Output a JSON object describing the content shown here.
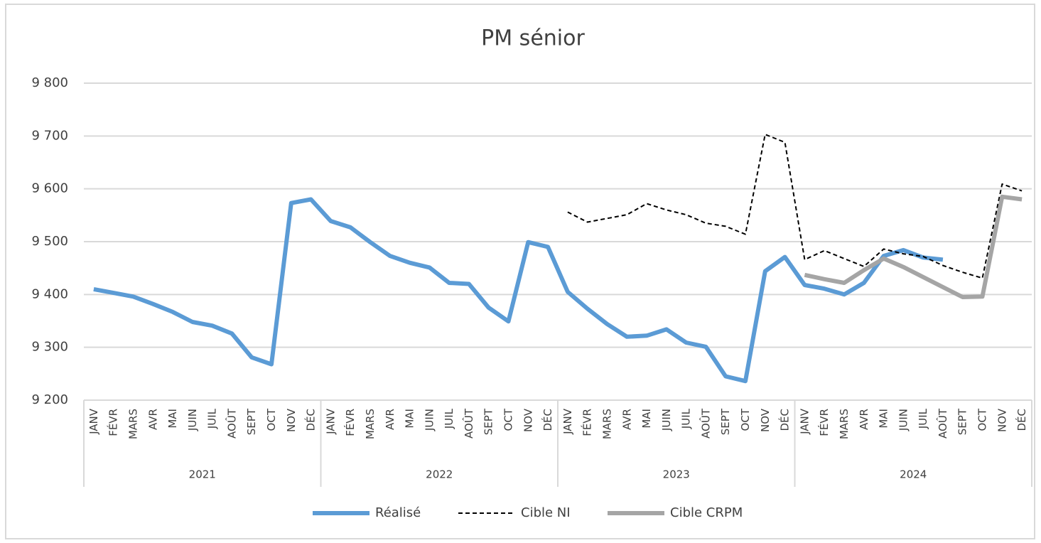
{
  "chart_data": {
    "type": "line",
    "title": "PM sénior",
    "categories": [
      "JANV",
      "FÉVR",
      "MARS",
      "AVR",
      "MAI",
      "JUIN",
      "JUIL",
      "AOÛT",
      "SEPT",
      "OCT",
      "NOV",
      "DÉC",
      "JANV",
      "FÉVR",
      "MARS",
      "AVR",
      "MAI",
      "JUIN",
      "JUIL",
      "AOÛT",
      "SEPT",
      "OCT",
      "NOV",
      "DÉC",
      "JANV",
      "FÉVR",
      "MARS",
      "AVR",
      "MAI",
      "JUIN",
      "JUIL",
      "AOÛT",
      "SEPT",
      "OCT",
      "NOV",
      "DÉC",
      "JANV",
      "FÉVR",
      "MARS",
      "AVR",
      "MAI",
      "JUIN",
      "JUIL",
      "AOÛT",
      "SEPT",
      "OCT",
      "NOV",
      "DÉC"
    ],
    "groups": [
      "2021",
      "2022",
      "2023",
      "2024"
    ],
    "series": [
      {
        "name": "Réalisé",
        "color": "#5b9bd5",
        "style": "solid",
        "values": [
          9410,
          9403,
          9396,
          9382,
          9367,
          9348,
          9341,
          9326,
          9281,
          9268,
          9573,
          9580,
          9539,
          9527,
          9499,
          9473,
          9460,
          9451,
          9422,
          9420,
          9375,
          9349,
          9499,
          9490,
          9405,
          9373,
          9344,
          9320,
          9322,
          9334,
          9309,
          9301,
          9245,
          9236,
          9444,
          9471,
          9418,
          9411,
          9400,
          9422,
          9473,
          9484,
          9470,
          9466,
          null,
          null,
          null,
          null
        ]
      },
      {
        "name": "Cible NI",
        "color": "#000000",
        "style": "dashed",
        "values": [
          null,
          null,
          null,
          null,
          null,
          null,
          null,
          null,
          null,
          null,
          null,
          null,
          null,
          null,
          null,
          null,
          null,
          null,
          null,
          null,
          null,
          null,
          null,
          null,
          9556,
          9537,
          9544,
          9551,
          9572,
          9560,
          9551,
          9535,
          9529,
          9514,
          9703,
          9688,
          9466,
          9483,
          9468,
          9453,
          9486,
          9477,
          9472,
          9455,
          9442,
          9431,
          9609,
          9596
        ]
      },
      {
        "name": "Cible CRPM",
        "color": "#a5a5a5",
        "style": "solid",
        "values": [
          null,
          null,
          null,
          null,
          null,
          null,
          null,
          null,
          null,
          null,
          null,
          null,
          null,
          null,
          null,
          null,
          null,
          null,
          null,
          null,
          null,
          null,
          null,
          null,
          null,
          null,
          null,
          null,
          null,
          null,
          null,
          null,
          null,
          null,
          null,
          null,
          9437,
          9429,
          9422,
          9446,
          9468,
          9452,
          9433,
          9414,
          9395,
          9396,
          9585,
          9580
        ]
      }
    ],
    "ylim": [
      9200,
      9800
    ],
    "yticks": [
      {
        "value": 9200,
        "label": "9 200"
      },
      {
        "value": 9300,
        "label": "9 300"
      },
      {
        "value": 9400,
        "label": "9 400"
      },
      {
        "value": 9500,
        "label": "9 500"
      },
      {
        "value": 9600,
        "label": "9 600"
      },
      {
        "value": 9700,
        "label": "9 700"
      },
      {
        "value": 9800,
        "label": "9 800"
      }
    ],
    "grid": true,
    "legend": "bottom"
  }
}
